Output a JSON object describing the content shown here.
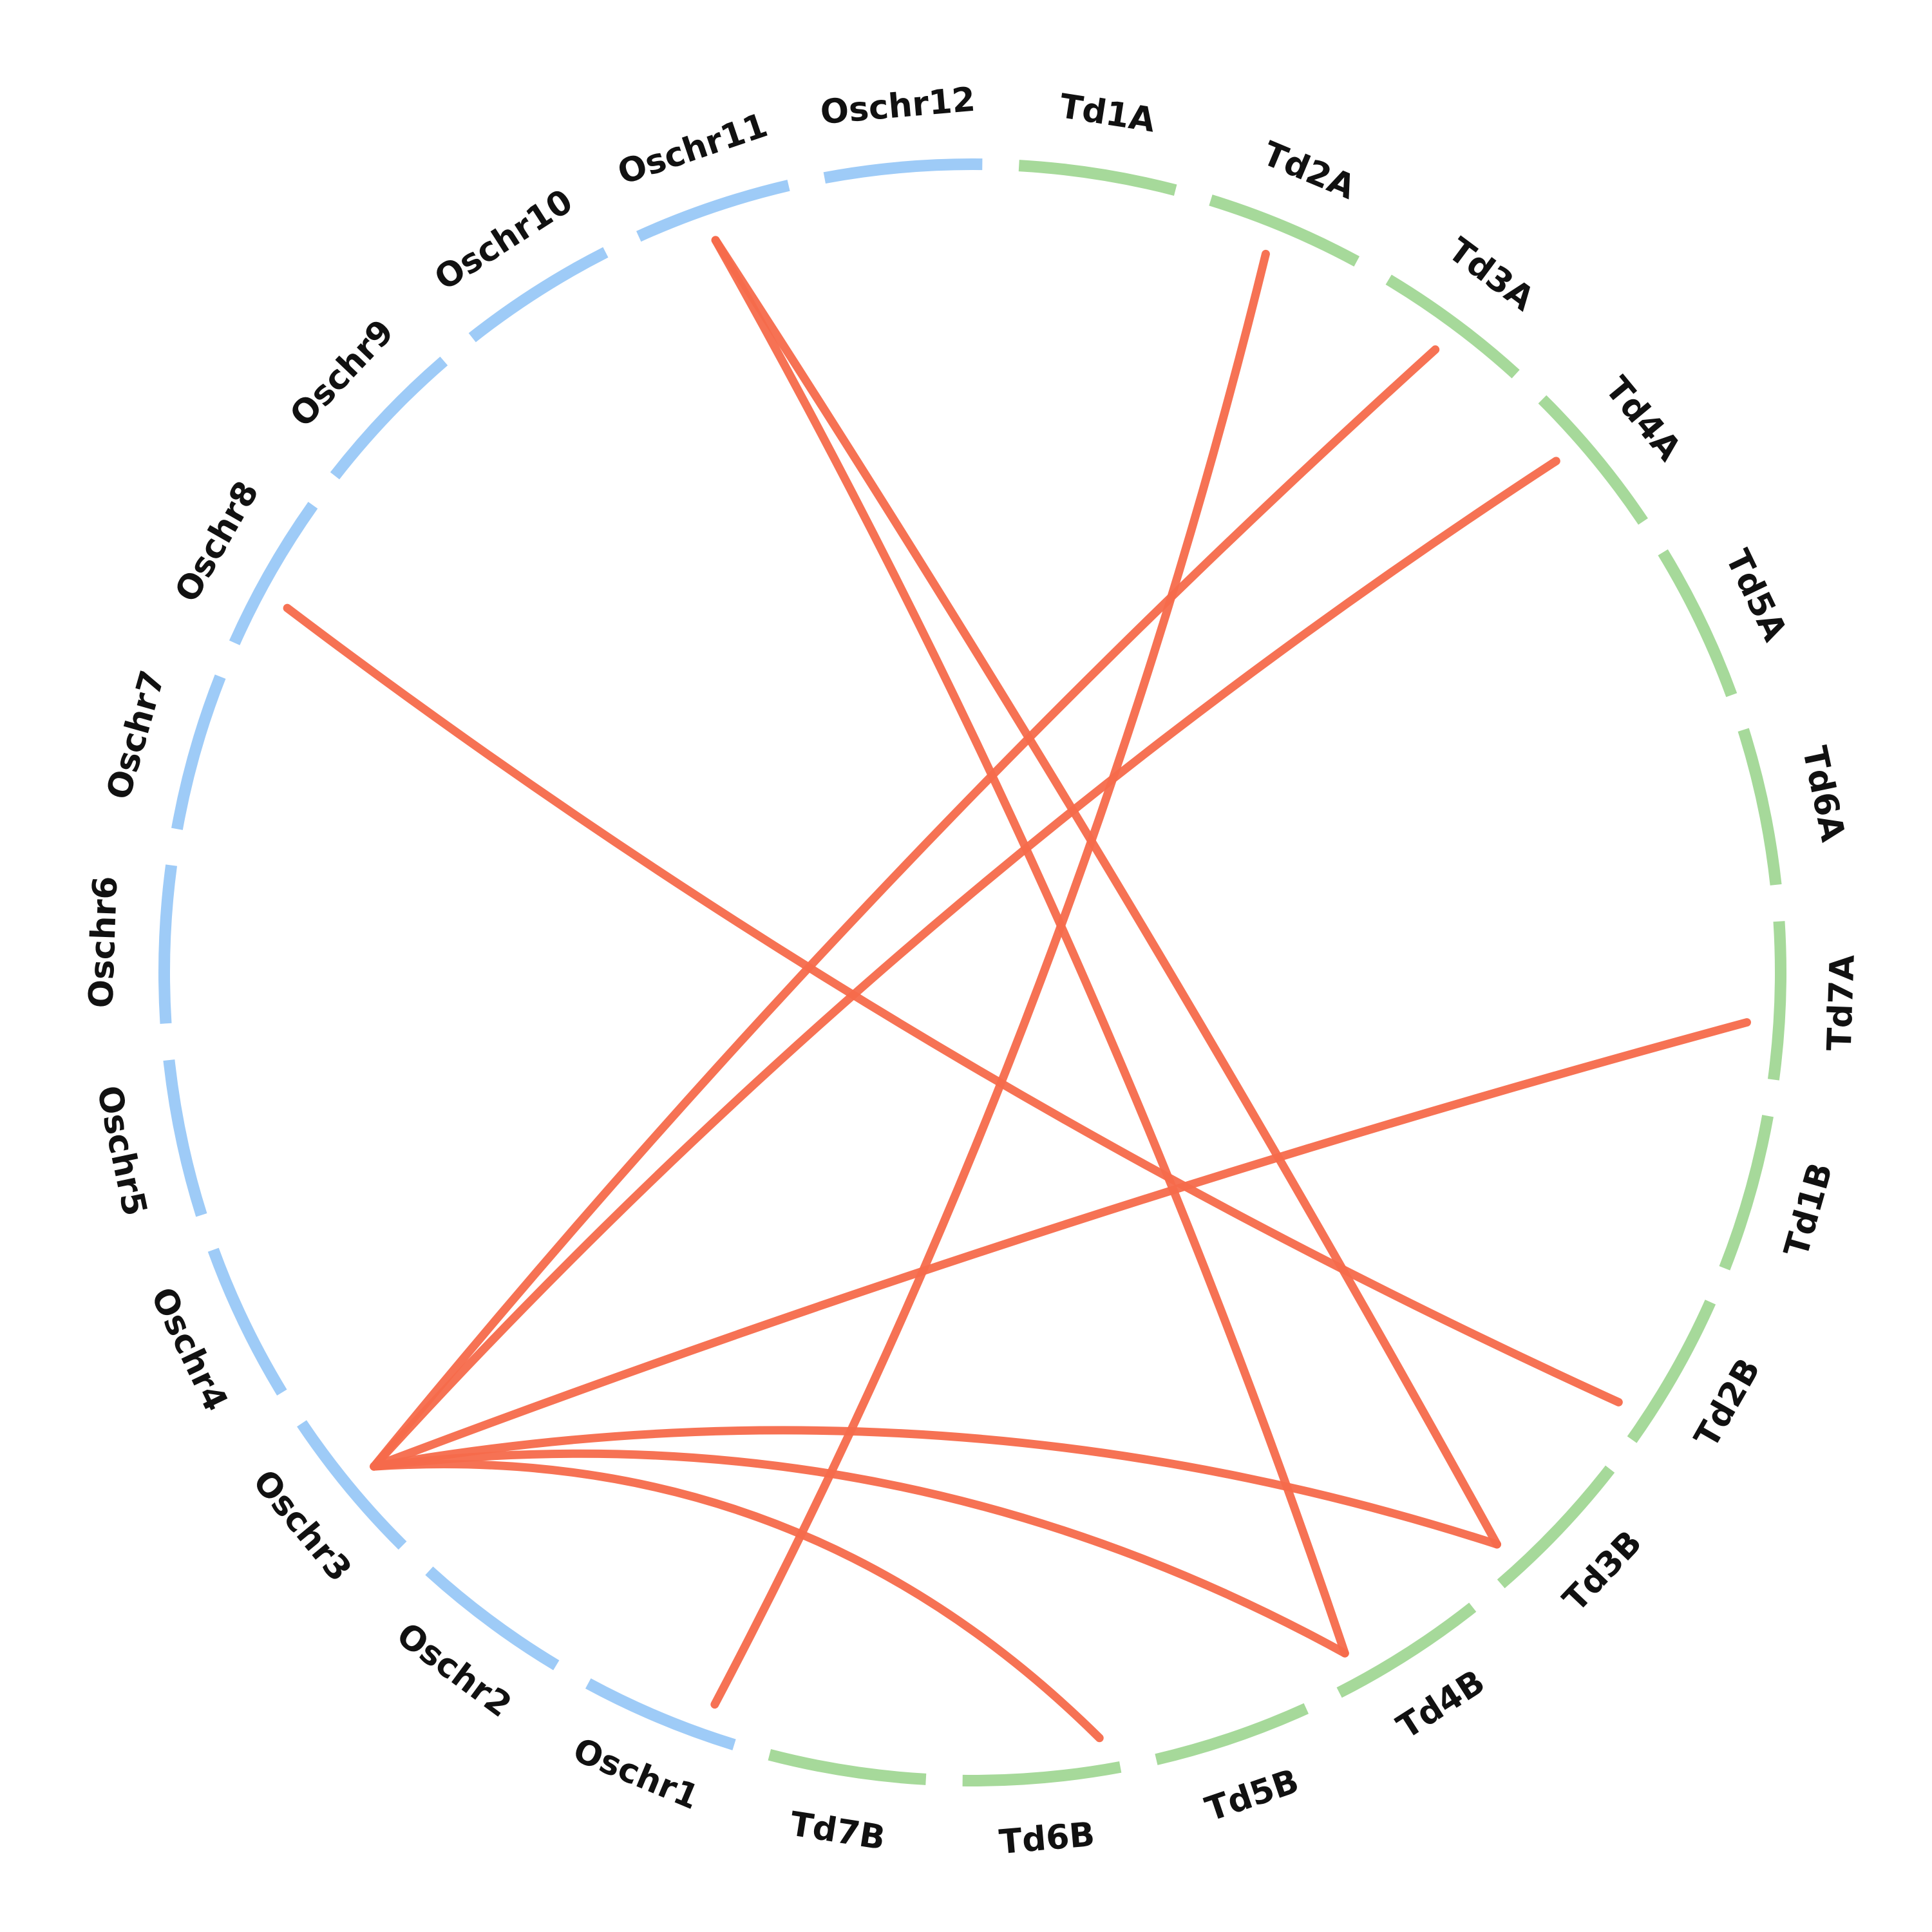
{
  "chart_data": {
    "type": "chord",
    "colors": {
      "rice": "#9ecbf7",
      "wheat": "#a6d99a",
      "link": "#f56a4b"
    },
    "chromosomes": [
      {
        "name": "Td1A",
        "group": "wheat"
      },
      {
        "name": "Td2A",
        "group": "wheat"
      },
      {
        "name": "Td3A",
        "group": "wheat"
      },
      {
        "name": "Td4A",
        "group": "wheat"
      },
      {
        "name": "Td5A",
        "group": "wheat"
      },
      {
        "name": "Td6A",
        "group": "wheat"
      },
      {
        "name": "Td7A",
        "group": "wheat"
      },
      {
        "name": "Td1B",
        "group": "wheat"
      },
      {
        "name": "Td2B",
        "group": "wheat"
      },
      {
        "name": "Td3B",
        "group": "wheat"
      },
      {
        "name": "Td4B",
        "group": "wheat"
      },
      {
        "name": "Td5B",
        "group": "wheat"
      },
      {
        "name": "Td6B",
        "group": "wheat"
      },
      {
        "name": "Td7B",
        "group": "wheat"
      },
      {
        "name": "Oschr1",
        "group": "rice"
      },
      {
        "name": "Oschr2",
        "group": "rice"
      },
      {
        "name": "Oschr3",
        "group": "rice"
      },
      {
        "name": "Oschr4",
        "group": "rice"
      },
      {
        "name": "Oschr5",
        "group": "rice"
      },
      {
        "name": "Oschr6",
        "group": "rice"
      },
      {
        "name": "Oschr7",
        "group": "rice"
      },
      {
        "name": "Oschr8",
        "group": "rice"
      },
      {
        "name": "Oschr9",
        "group": "rice"
      },
      {
        "name": "Oschr10",
        "group": "rice"
      },
      {
        "name": "Oschr11",
        "group": "rice"
      },
      {
        "name": "Oschr12",
        "group": "rice"
      }
    ],
    "links": [
      {
        "from": "Td2A",
        "to": "Oschr1"
      },
      {
        "from": "Td3A",
        "to": "Oschr3"
      },
      {
        "from": "Td4A",
        "to": "Oschr3"
      },
      {
        "from": "Td7A",
        "to": "Oschr3"
      },
      {
        "from": "Oschr3",
        "to": "Td6B"
      },
      {
        "from": "Oschr3",
        "to": "Td4B"
      },
      {
        "from": "Oschr3",
        "to": "Td3B"
      },
      {
        "from": "Oschr8",
        "to": "Td2B"
      },
      {
        "from": "Oschr11",
        "to": "Td3B"
      },
      {
        "from": "Oschr11",
        "to": "Td4B"
      }
    ]
  }
}
